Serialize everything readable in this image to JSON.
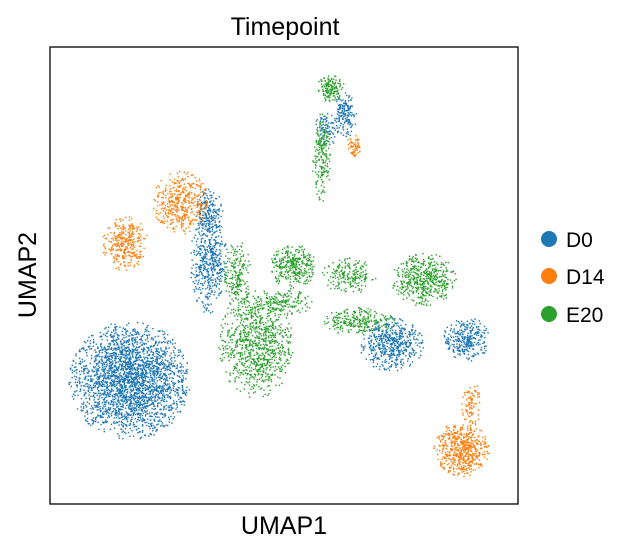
{
  "chart_data": {
    "type": "scatter",
    "title": "Timepoint",
    "xlabel": "UMAP1",
    "ylabel": "UMAP2",
    "xlim": [
      0,
      100
    ],
    "ylim": [
      0,
      100
    ],
    "ticks": "none",
    "grid": false,
    "legend": {
      "placement": "right",
      "entries": [
        {
          "label": "D0",
          "color": "#1f77b4"
        },
        {
          "label": "D14",
          "color": "#ff7f0e"
        },
        {
          "label": "E20",
          "color": "#2ca02c"
        }
      ]
    },
    "series": [
      {
        "name": "D0",
        "color": "#1f77b4",
        "clusters": [
          {
            "cx": 17,
            "cy": 27,
            "rx": 13,
            "ry": 13,
            "n": 2600
          },
          {
            "cx": 34,
            "cy": 53,
            "rx": 4,
            "ry": 12,
            "n": 480
          },
          {
            "cx": 34,
            "cy": 64,
            "rx": 3,
            "ry": 5,
            "n": 160
          },
          {
            "cx": 73,
            "cy": 35,
            "rx": 7,
            "ry": 6,
            "n": 520
          },
          {
            "cx": 89,
            "cy": 36,
            "rx": 5,
            "ry": 5,
            "n": 300
          },
          {
            "cx": 63,
            "cy": 85,
            "rx": 2.5,
            "ry": 5,
            "n": 160
          },
          {
            "cx": 59,
            "cy": 82,
            "rx": 2.5,
            "ry": 4,
            "n": 90
          }
        ]
      },
      {
        "name": "D14",
        "color": "#ff7f0e",
        "clusters": [
          {
            "cx": 88,
            "cy": 12,
            "rx": 6,
            "ry": 6,
            "n": 560
          },
          {
            "cx": 90,
            "cy": 22,
            "rx": 2,
            "ry": 6,
            "n": 90
          },
          {
            "cx": 16,
            "cy": 57,
            "rx": 5,
            "ry": 6,
            "n": 320
          },
          {
            "cx": 28,
            "cy": 66,
            "rx": 6,
            "ry": 7,
            "n": 420
          },
          {
            "cx": 65,
            "cy": 78,
            "rx": 1.6,
            "ry": 3,
            "n": 60
          }
        ]
      },
      {
        "name": "E20",
        "color": "#2ca02c",
        "clusters": [
          {
            "cx": 44,
            "cy": 35,
            "rx": 8,
            "ry": 12,
            "n": 900
          },
          {
            "cx": 52,
            "cy": 52,
            "rx": 5,
            "ry": 5,
            "n": 320
          },
          {
            "cx": 64,
            "cy": 50,
            "rx": 6,
            "ry": 4,
            "n": 200
          },
          {
            "cx": 80,
            "cy": 49,
            "rx": 7,
            "ry": 6,
            "n": 500
          },
          {
            "cx": 66,
            "cy": 40,
            "rx": 8,
            "ry": 3,
            "n": 250
          },
          {
            "cx": 58,
            "cy": 76,
            "rx": 2,
            "ry": 10,
            "n": 200
          },
          {
            "cx": 60,
            "cy": 91,
            "rx": 3,
            "ry": 3,
            "n": 150
          },
          {
            "cx": 40,
            "cy": 50,
            "rx": 3,
            "ry": 8,
            "n": 200
          },
          {
            "cx": 50,
            "cy": 44,
            "rx": 6,
            "ry": 3,
            "n": 150
          }
        ]
      }
    ]
  }
}
